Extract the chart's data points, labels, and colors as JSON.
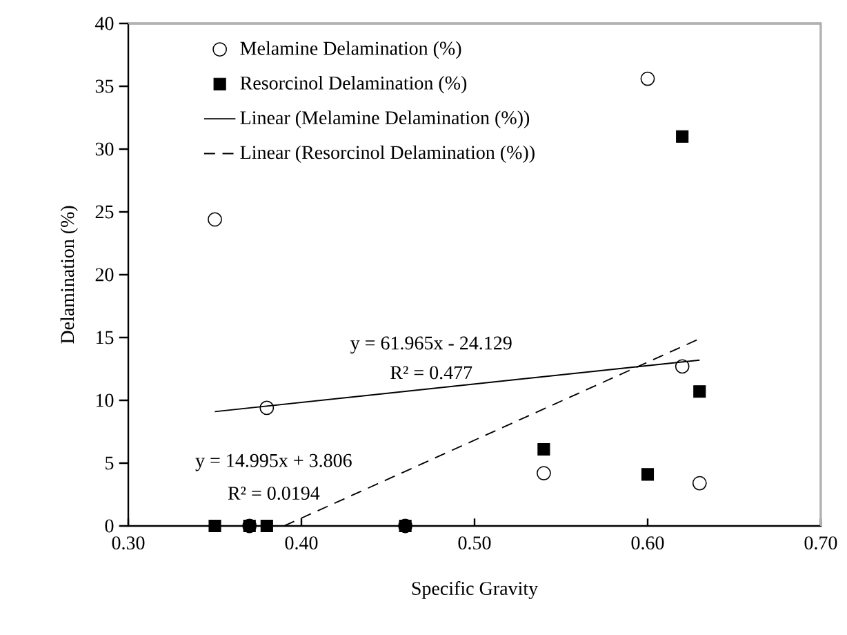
{
  "chart_data": {
    "type": "scatter",
    "xlabel": "Specific Gravity",
    "ylabel": "Delamination (%)",
    "xlim": [
      0.3,
      0.7
    ],
    "xticks": [
      {
        "value": 0.3,
        "label": "0.30"
      },
      {
        "value": 0.4,
        "label": "0.40"
      },
      {
        "value": 0.5,
        "label": "0.50"
      },
      {
        "value": 0.6,
        "label": "0.60"
      },
      {
        "value": 0.7,
        "label": "0.70"
      }
    ],
    "ylim": [
      0,
      40
    ],
    "yticks": [
      0,
      5,
      10,
      15,
      20,
      25,
      30,
      35,
      40
    ],
    "legend": "top left",
    "grid": false,
    "series": [
      {
        "name": "Melamine Delamination (%)",
        "marker": "circle",
        "color": "#000000",
        "x": [
          0.35,
          0.38,
          0.37,
          0.46,
          0.54,
          0.6,
          0.62,
          0.63
        ],
        "values": [
          24.4,
          9.4,
          0,
          0,
          4.2,
          35.6,
          12.7,
          3.4
        ]
      },
      {
        "name": "Resorcinol Delamination (%)",
        "marker": "square",
        "color": "#000000",
        "x": [
          0.35,
          0.38,
          0.37,
          0.46,
          0.54,
          0.6,
          0.62,
          0.63
        ],
        "values": [
          0,
          0,
          0,
          0,
          6.1,
          4.1,
          31.0,
          10.7
        ]
      },
      {
        "name": "Linear (Melamine Delamination (%))",
        "type": "line",
        "marker": "none",
        "line_style": "solid",
        "color": "#000000",
        "x": [
          0.35,
          0.63
        ],
        "values": [
          9.1,
          13.2
        ]
      },
      {
        "name": "Linear (Resorcinol Delamination (%))",
        "type": "line",
        "marker": "none",
        "line_style": "dashed",
        "color": "#000000",
        "x": [
          0.39,
          0.63
        ],
        "values": [
          0,
          14.9
        ]
      }
    ],
    "annotations": [
      "y = 61.965x - 24.129",
      "R² = 0.477",
      "y = 14.995x + 3.806",
      "R² = 0.0194"
    ]
  }
}
